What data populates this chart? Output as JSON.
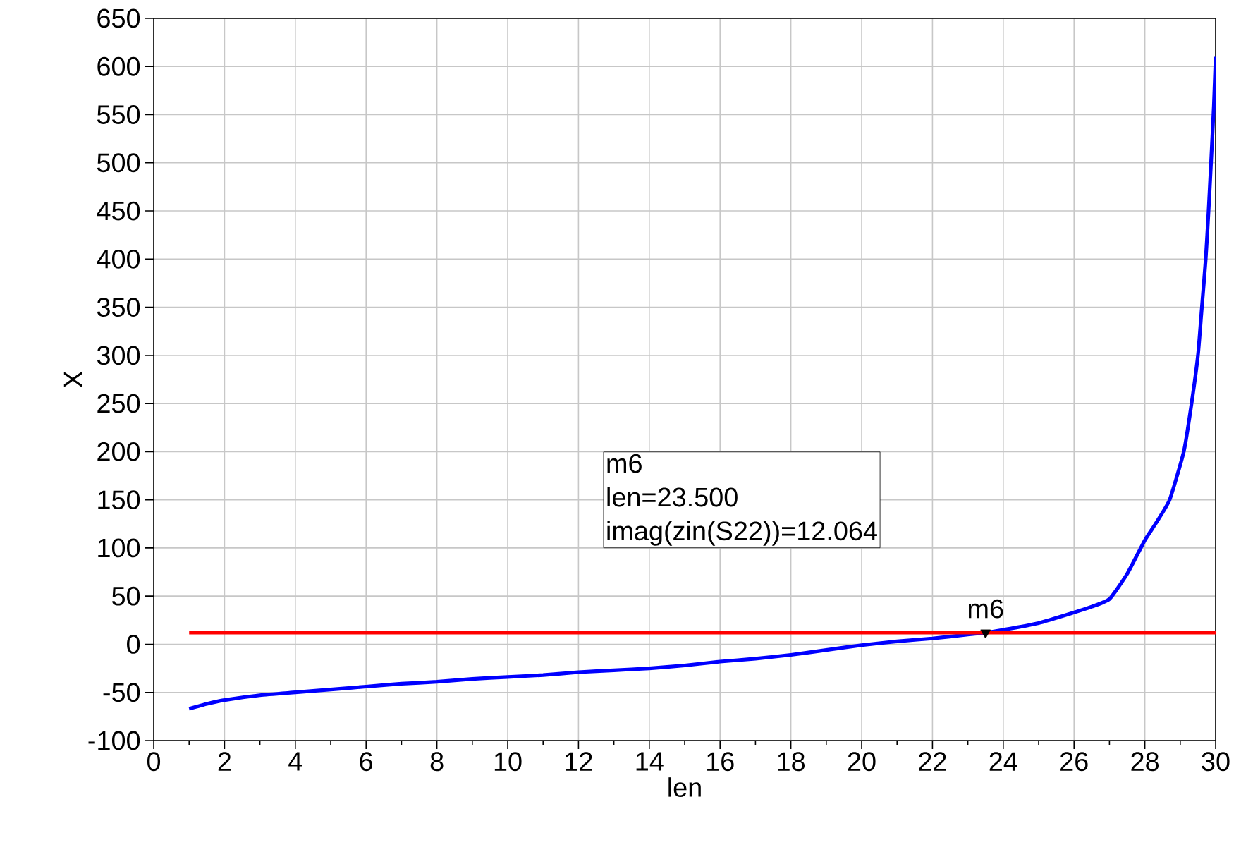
{
  "chart_data": {
    "type": "line",
    "xlabel": "len",
    "ylabel": "X",
    "xlim": [
      0,
      30
    ],
    "ylim": [
      -100,
      650
    ],
    "xticks": [
      0,
      2,
      4,
      6,
      8,
      10,
      12,
      14,
      16,
      18,
      20,
      22,
      24,
      26,
      28,
      30
    ],
    "yticks": [
      -100,
      -50,
      0,
      50,
      100,
      150,
      200,
      250,
      300,
      350,
      400,
      450,
      500,
      550,
      600,
      650
    ],
    "grid": true,
    "marker": "none",
    "line_style": "solid",
    "series": [
      {
        "color": "#0000ff",
        "x": [
          1,
          1.5,
          2,
          3,
          4,
          5,
          6,
          7,
          8,
          9,
          10,
          11,
          12,
          13,
          14,
          15,
          16,
          17,
          18,
          19,
          20,
          21,
          22,
          23,
          23.5,
          24,
          25,
          26,
          26.5,
          27,
          27.5,
          28,
          28.3,
          28.7,
          29.1,
          29.3,
          29.5,
          29.6,
          29.72,
          29.8,
          29.87,
          29.95,
          30
        ],
        "values": [
          -67,
          -62,
          -58,
          -53,
          -50,
          -47,
          -44,
          -41,
          -39,
          -36,
          -34,
          -32,
          -29,
          -27,
          -25,
          -22,
          -18,
          -15,
          -11,
          -6,
          -1,
          3,
          6,
          10,
          12.064,
          15,
          22,
          33,
          39,
          47,
          73,
          108,
          125,
          150,
          200,
          245,
          300,
          345,
          400,
          450,
          500,
          560,
          610
        ]
      },
      {
        "color": "#ff0000",
        "x": [
          1,
          30
        ],
        "values": [
          12.064,
          12.064
        ]
      },
      {
        "type": "scatter",
        "marker": "triangle",
        "color": "#000000",
        "x": [
          23.5
        ],
        "values": [
          12.064
        ]
      }
    ],
    "annotations": [
      {
        "text": "m6",
        "x": 23.5,
        "y": 12.064
      },
      "m6",
      "len=23.500",
      "imag(zin(S22))=12.064"
    ]
  }
}
